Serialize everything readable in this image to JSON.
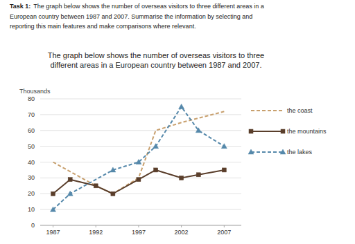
{
  "chart_data": {
    "type": "line",
    "annotations": [
      "Task 1:",
      "The graph below shows the number of overseas visitors to three different areas in a",
      "European country between 1987 and 2007. Summarise the information by selecting and",
      "reporting this main features and make comparisons where relevant."
    ],
    "title": [
      "The graph below shows the number of overseas visitors to three",
      "different areas in a European country between 1987 and 2007."
    ],
    "y_label": "Thousands",
    "series": [
      {
        "name": "the coast",
        "color": "#c8a06e",
        "line_style": "dashed",
        "marker": "none",
        "x": [
          1987,
          1992,
          1994,
          1997,
          1999,
          2002,
          2007
        ],
        "values": [
          40,
          25,
          20,
          30,
          60,
          65,
          72
        ]
      },
      {
        "name": "the mountains",
        "color": "#5a3e2b",
        "line_style": "solid",
        "marker": "square",
        "x": [
          1987,
          1989,
          1992,
          1994,
          1997,
          1999,
          2002,
          2004,
          2007
        ],
        "values": [
          20,
          29,
          25,
          20,
          29,
          35,
          30,
          32,
          35
        ]
      },
      {
        "name": "the lakes",
        "color": "#5588aa",
        "line_style": "dashed",
        "marker": "triangle",
        "x": [
          1987,
          1989,
          1994,
          1997,
          1999,
          2002,
          2004,
          2007
        ],
        "values": [
          10,
          20,
          35,
          40,
          50,
          75,
          60,
          50
        ]
      }
    ],
    "xlim": [
      1985.5,
      2009
    ],
    "xticks": [
      1987,
      1992,
      1997,
      2002,
      2007
    ],
    "ylim": [
      0,
      80
    ],
    "yticks": [
      0,
      10,
      20,
      30,
      40,
      50,
      60,
      70,
      80
    ],
    "grid": true,
    "legend": "right"
  }
}
